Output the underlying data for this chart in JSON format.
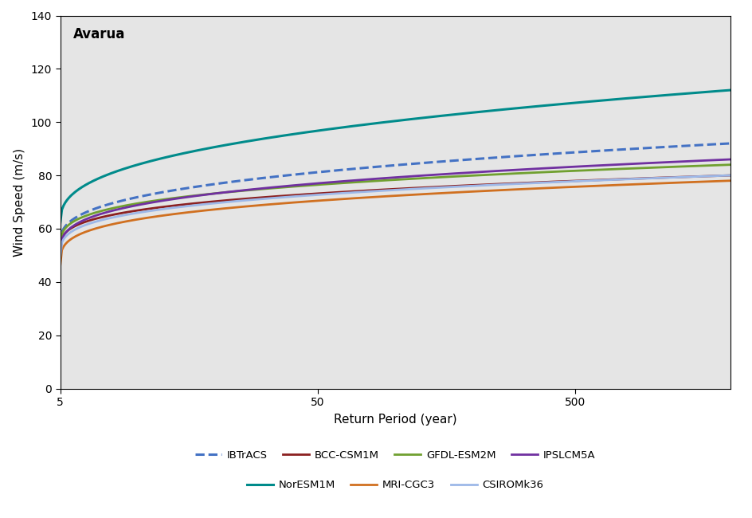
{
  "title": "Avarua",
  "xlabel": "Return Period (year)",
  "ylabel": "Wind Speed (m/s)",
  "xlim_log": [
    5,
    2000
  ],
  "ylim": [
    0,
    140
  ],
  "yticks": [
    0,
    20,
    40,
    60,
    80,
    100,
    120,
    140
  ],
  "xticks": [
    5,
    50,
    500
  ],
  "background_color": "#e5e5e5",
  "series": {
    "IBTrACS": {
      "color": "#4472C4",
      "dashed": true,
      "y_start": 54,
      "y_end": 92,
      "shape": 0.35,
      "lw": 2.2
    },
    "BCC-CSM1M": {
      "color": "#8B2020",
      "dashed": false,
      "y_start": 51,
      "y_end": 80,
      "shape": 0.28,
      "lw": 2.0
    },
    "GFDL-ESM2M": {
      "color": "#70A030",
      "dashed": false,
      "y_start": 52,
      "y_end": 84,
      "shape": 0.28,
      "lw": 2.0
    },
    "IPSLCM5A": {
      "color": "#7030A0",
      "dashed": false,
      "y_start": 50,
      "y_end": 86,
      "shape": 0.3,
      "lw": 2.0
    },
    "NorESM1M": {
      "color": "#008B8B",
      "dashed": false,
      "y_start": 62,
      "y_end": 112,
      "shape": 0.38,
      "lw": 2.2
    },
    "MRI-CGC3": {
      "color": "#D07020",
      "dashed": false,
      "y_start": 46,
      "y_end": 78,
      "shape": 0.28,
      "lw": 2.0
    },
    "CSIROMk36": {
      "color": "#9DB8E8",
      "dashed": false,
      "y_start": 49,
      "y_end": 80,
      "shape": 0.28,
      "lw": 2.0
    }
  },
  "legend_order": [
    "IBTrACS",
    "BCC-CSM1M",
    "GFDL-ESM2M",
    "IPSLCM5A",
    "NorESM1M",
    "MRI-CGC3",
    "CSIROMk36"
  ]
}
